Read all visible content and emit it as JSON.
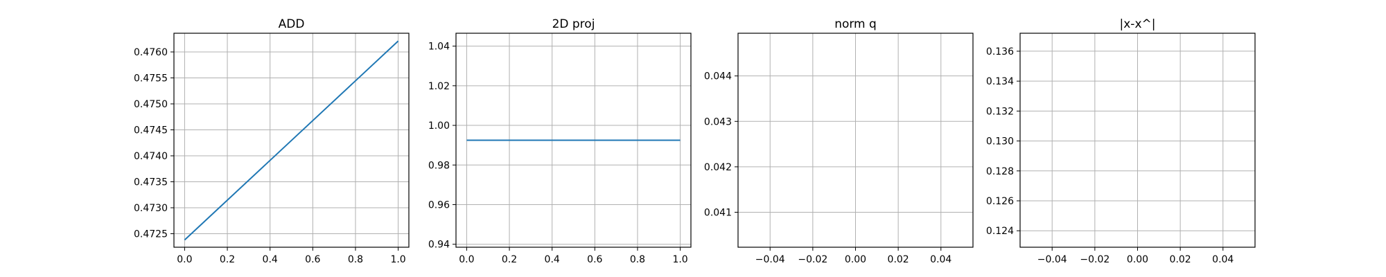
{
  "chart_data": [
    {
      "type": "line",
      "title": "ADD",
      "xlabel": "",
      "ylabel": "",
      "grid": true,
      "xlim": [
        -0.05,
        1.05
      ],
      "ylim": [
        0.47224,
        0.47636
      ],
      "xticks": [
        0.0,
        0.2,
        0.4,
        0.6,
        0.8,
        1.0
      ],
      "xtick_labels": [
        "0.0",
        "0.2",
        "0.4",
        "0.6",
        "0.8",
        "1.0"
      ],
      "yticks": [
        0.4725,
        0.473,
        0.4735,
        0.474,
        0.4745,
        0.475,
        0.4755,
        0.476
      ],
      "ytick_labels": [
        "0.4725",
        "0.4730",
        "0.4735",
        "0.4740",
        "0.4745",
        "0.4750",
        "0.4755",
        "0.4760"
      ],
      "series": [
        {
          "x": [
            0.0,
            1.0
          ],
          "y": [
            0.47238,
            0.47621
          ],
          "color": "#1f77b4"
        }
      ]
    },
    {
      "type": "line",
      "title": "2D proj",
      "xlabel": "",
      "ylabel": "",
      "grid": true,
      "xlim": [
        -0.05,
        1.05
      ],
      "ylim": [
        0.9385,
        1.0465
      ],
      "xticks": [
        0.0,
        0.2,
        0.4,
        0.6,
        0.8,
        1.0
      ],
      "xtick_labels": [
        "0.0",
        "0.2",
        "0.4",
        "0.6",
        "0.8",
        "1.0"
      ],
      "yticks": [
        0.94,
        0.96,
        0.98,
        1.0,
        1.02,
        1.04
      ],
      "ytick_labels": [
        "0.94",
        "0.96",
        "0.98",
        "1.00",
        "1.02",
        "1.04"
      ],
      "series": [
        {
          "x": [
            0.0,
            1.0
          ],
          "y": [
            0.9925,
            0.9925
          ],
          "color": "#1f77b4"
        }
      ]
    },
    {
      "type": "line",
      "title": "norm q",
      "xlabel": "",
      "ylabel": "",
      "grid": true,
      "xlim": [
        -0.055,
        0.055
      ],
      "ylim": [
        0.04023,
        0.04494
      ],
      "xticks": [
        -0.04,
        -0.02,
        0.0,
        0.02,
        0.04
      ],
      "xtick_labels": [
        "−0.04",
        "−0.02",
        "0.00",
        "0.02",
        "0.04"
      ],
      "yticks": [
        0.041,
        0.042,
        0.043,
        0.044
      ],
      "ytick_labels": [
        "0.041",
        "0.042",
        "0.043",
        "0.044"
      ],
      "series": []
    },
    {
      "type": "line",
      "title": "|x-x^|",
      "xlabel": "",
      "ylabel": "",
      "grid": true,
      "xlim": [
        -0.055,
        0.055
      ],
      "ylim": [
        0.1229,
        0.1372
      ],
      "xticks": [
        -0.04,
        -0.02,
        0.0,
        0.02,
        0.04
      ],
      "xtick_labels": [
        "−0.04",
        "−0.02",
        "0.00",
        "0.02",
        "0.04"
      ],
      "yticks": [
        0.124,
        0.126,
        0.128,
        0.13,
        0.132,
        0.134,
        0.136
      ],
      "ytick_labels": [
        "0.124",
        "0.126",
        "0.128",
        "0.130",
        "0.132",
        "0.134",
        "0.136"
      ],
      "series": []
    }
  ]
}
